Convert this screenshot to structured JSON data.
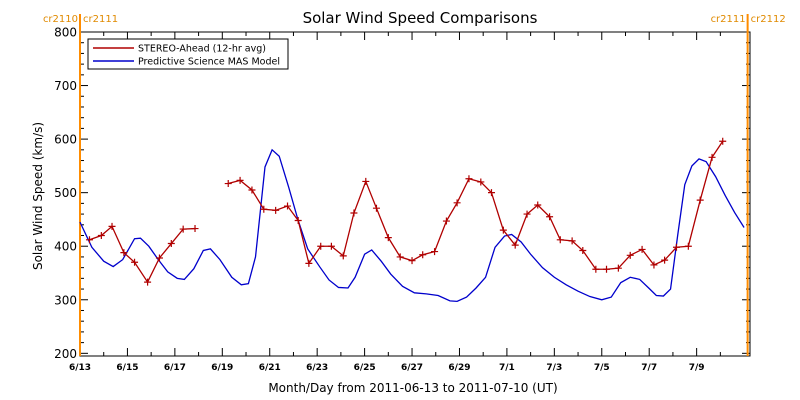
{
  "chart_data": {
    "type": "line",
    "title": "Solar Wind Speed Comparisons",
    "xlabel": "Month/Day from 2011-06-13 to 2011-07-10 (UT)",
    "ylabel": "Solar Wind Speed (km/s)",
    "ylim": [
      195,
      800
    ],
    "xlim": [
      0,
      28.25
    ],
    "grid": false,
    "legend_position": "top-left",
    "yticks": [
      200,
      300,
      400,
      500,
      600,
      700,
      800
    ],
    "xticks": [
      {
        "x": 0,
        "label": "6/13"
      },
      {
        "x": 2,
        "label": "6/15"
      },
      {
        "x": 4,
        "label": "6/17"
      },
      {
        "x": 6,
        "label": "6/19"
      },
      {
        "x": 8,
        "label": "6/21"
      },
      {
        "x": 10,
        "label": "6/23"
      },
      {
        "x": 12,
        "label": "6/25"
      },
      {
        "x": 14,
        "label": "6/27"
      },
      {
        "x": 16,
        "label": "6/29"
      },
      {
        "x": 18,
        "label": "7/1"
      },
      {
        "x": 20,
        "label": "7/3"
      },
      {
        "x": 22,
        "label": "7/5"
      },
      {
        "x": 24,
        "label": "7/7"
      },
      {
        "x": 26,
        "label": "7/9"
      }
    ],
    "carrington_markers": [
      {
        "x": 0,
        "left_label": "cr2110",
        "right_label": "cr2111"
      },
      {
        "x": 28.15,
        "left_label": "cr2111",
        "right_label": "cr2112"
      }
    ],
    "series": [
      {
        "name": "STEREO-Ahead (12-hr avg)",
        "color": "#b00000",
        "markers": "plus",
        "segments": [
          [
            [
              0.4,
              412
            ],
            [
              0.9,
              420
            ],
            [
              1.35,
              437
            ],
            [
              1.85,
              388
            ],
            [
              2.3,
              370
            ],
            [
              2.85,
              333
            ],
            [
              3.35,
              378
            ],
            [
              3.85,
              405
            ],
            [
              4.35,
              432
            ],
            [
              4.85,
              433
            ]
          ],
          [
            [
              6.25,
              517
            ],
            [
              6.75,
              523
            ],
            [
              7.25,
              505
            ],
            [
              7.75,
              469
            ],
            [
              8.25,
              467
            ],
            [
              8.75,
              475
            ],
            [
              9.2,
              448
            ],
            [
              9.65,
              368
            ],
            [
              10.15,
              400
            ],
            [
              10.6,
              400
            ],
            [
              11.1,
              382
            ],
            [
              11.55,
              462
            ],
            [
              12.05,
              521
            ],
            [
              12.5,
              471
            ],
            [
              13.0,
              416
            ],
            [
              13.5,
              380
            ],
            [
              14.0,
              373
            ],
            [
              14.45,
              384
            ],
            [
              14.95,
              390
            ],
            [
              15.45,
              447
            ],
            [
              15.9,
              481
            ],
            [
              16.4,
              526
            ],
            [
              16.9,
              520
            ],
            [
              17.35,
              500
            ],
            [
              17.85,
              430
            ],
            [
              18.35,
              402
            ],
            [
              18.85,
              460
            ],
            [
              19.3,
              477
            ],
            [
              19.8,
              455
            ],
            [
              20.25,
              412
            ],
            [
              20.75,
              410
            ],
            [
              21.2,
              392
            ],
            [
              21.75,
              357
            ],
            [
              22.2,
              357
            ],
            [
              22.7,
              359
            ],
            [
              23.2,
              383
            ],
            [
              23.7,
              394
            ],
            [
              24.2,
              365
            ],
            [
              24.65,
              374
            ],
            [
              25.15,
              398
            ],
            [
              25.65,
              400
            ],
            [
              26.15,
              486
            ],
            [
              26.65,
              566
            ],
            [
              27.1,
              596
            ]
          ]
        ]
      },
      {
        "name": "Predictive Science MAS Model",
        "color": "#0000cc",
        "markers": "none",
        "points": [
          [
            0.0,
            445
          ],
          [
            0.5,
            398
          ],
          [
            1.0,
            372
          ],
          [
            1.4,
            362
          ],
          [
            1.8,
            375
          ],
          [
            2.3,
            414
          ],
          [
            2.55,
            415
          ],
          [
            2.9,
            400
          ],
          [
            3.3,
            375
          ],
          [
            3.7,
            352
          ],
          [
            4.1,
            340
          ],
          [
            4.4,
            338
          ],
          [
            4.8,
            358
          ],
          [
            5.2,
            392
          ],
          [
            5.5,
            395
          ],
          [
            5.9,
            375
          ],
          [
            6.4,
            342
          ],
          [
            6.8,
            328
          ],
          [
            7.1,
            330
          ],
          [
            7.4,
            380
          ],
          [
            7.8,
            548
          ],
          [
            8.1,
            580
          ],
          [
            8.4,
            568
          ],
          [
            8.8,
            510
          ],
          [
            9.2,
            448
          ],
          [
            9.6,
            395
          ],
          [
            10.1,
            362
          ],
          [
            10.5,
            337
          ],
          [
            10.9,
            323
          ],
          [
            11.3,
            322
          ],
          [
            11.6,
            342
          ],
          [
            12.0,
            385
          ],
          [
            12.3,
            393
          ],
          [
            12.7,
            372
          ],
          [
            13.1,
            348
          ],
          [
            13.6,
            325
          ],
          [
            14.1,
            313
          ],
          [
            14.6,
            311
          ],
          [
            15.1,
            308
          ],
          [
            15.6,
            298
          ],
          [
            15.9,
            297
          ],
          [
            16.3,
            305
          ],
          [
            16.7,
            322
          ],
          [
            17.1,
            342
          ],
          [
            17.5,
            398
          ],
          [
            17.9,
            419
          ],
          [
            18.2,
            422
          ],
          [
            18.6,
            408
          ],
          [
            19.0,
            385
          ],
          [
            19.5,
            360
          ],
          [
            20.0,
            342
          ],
          [
            20.5,
            328
          ],
          [
            21.0,
            316
          ],
          [
            21.5,
            306
          ],
          [
            22.0,
            300
          ],
          [
            22.4,
            305
          ],
          [
            22.8,
            332
          ],
          [
            23.2,
            342
          ],
          [
            23.6,
            338
          ],
          [
            24.0,
            321
          ],
          [
            24.3,
            308
          ],
          [
            24.6,
            307
          ],
          [
            24.9,
            320
          ],
          [
            25.2,
            420
          ],
          [
            25.5,
            515
          ],
          [
            25.8,
            550
          ],
          [
            26.1,
            563
          ],
          [
            26.4,
            558
          ],
          [
            26.8,
            530
          ],
          [
            27.2,
            495
          ],
          [
            27.6,
            463
          ],
          [
            28.0,
            435
          ]
        ]
      }
    ]
  }
}
